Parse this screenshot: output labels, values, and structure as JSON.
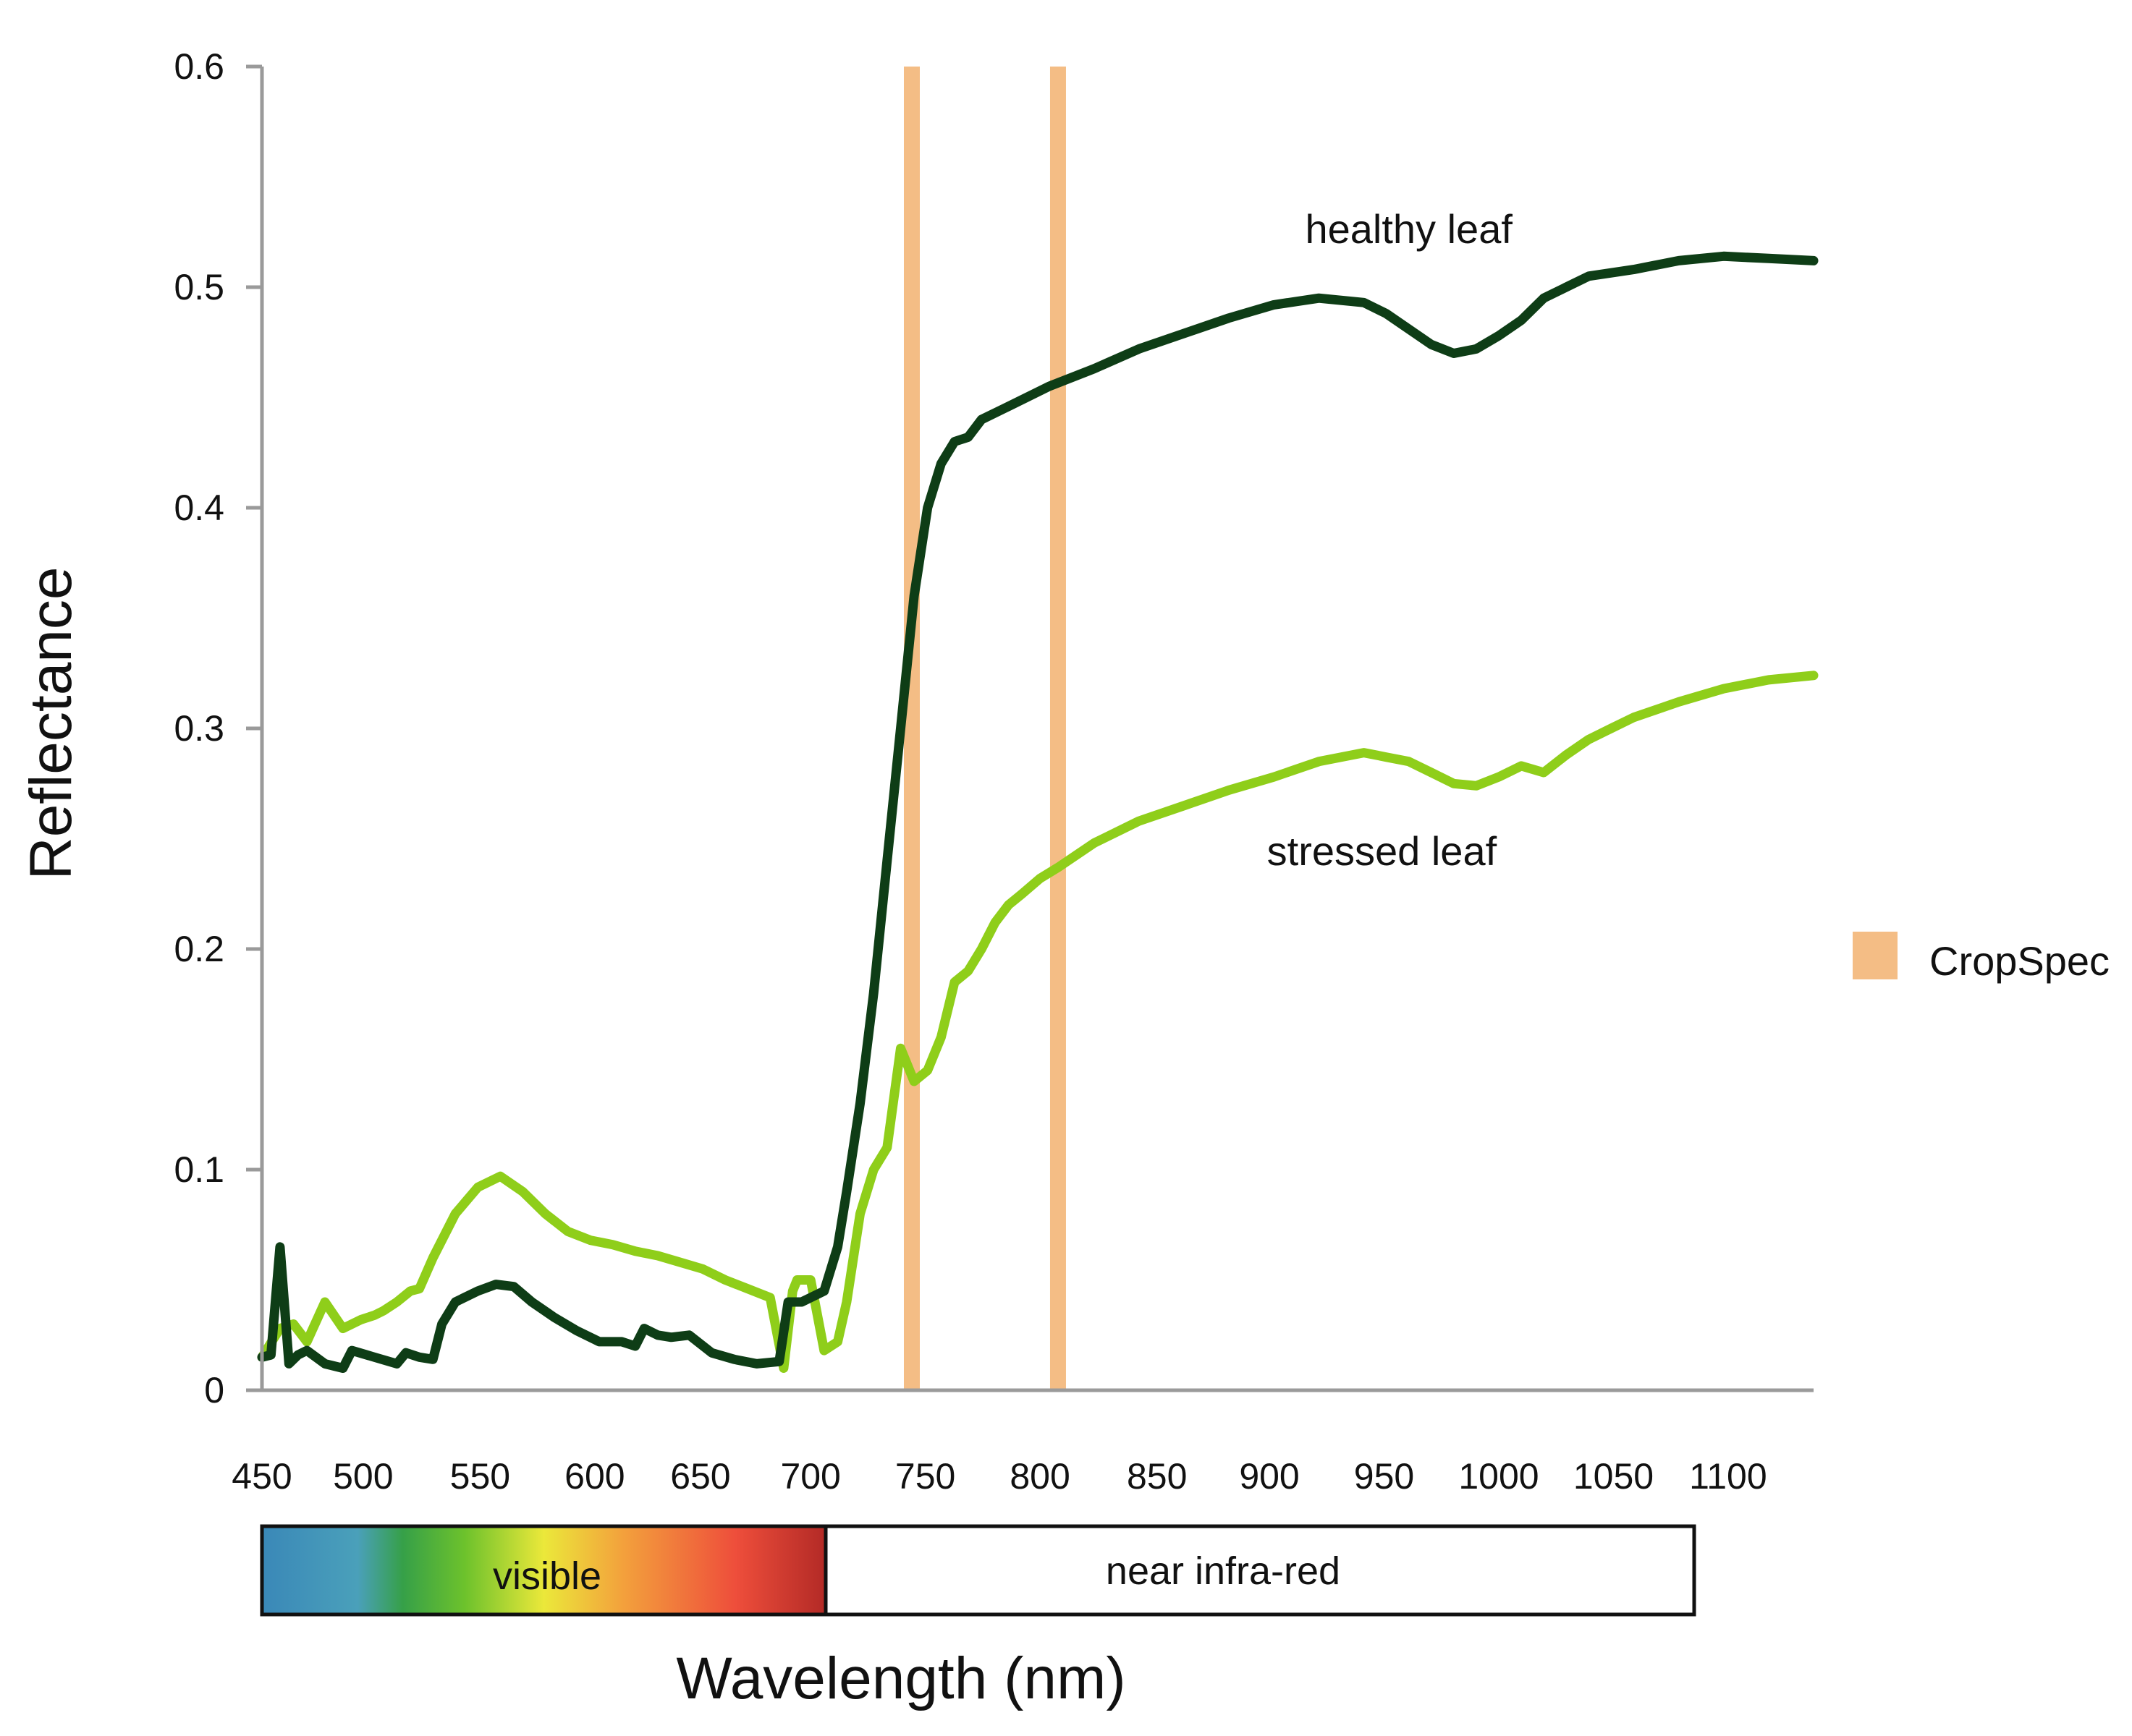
{
  "chart_data": {
    "type": "line",
    "title": "",
    "xlabel": "Wavelength (nm)",
    "ylabel": "Reflectance",
    "xlim": [
      450,
      1140
    ],
    "ylim": [
      0,
      0.6
    ],
    "grid": false,
    "x_tick_labels": [
      "450",
      "500",
      "550",
      "600",
      "650",
      "700",
      "750",
      "800",
      "850",
      "900",
      "950",
      "1000",
      "1050",
      "1100"
    ],
    "x_tick_values": [
      450,
      495,
      547,
      598,
      645,
      694,
      745,
      796,
      848,
      898,
      949,
      1000,
      1051,
      1102
    ],
    "y_tick_labels": [
      "0",
      "0.1",
      "0.2",
      "0.3",
      "0.4",
      "0.5",
      "0.6"
    ],
    "y_tick_values": [
      0,
      0.1,
      0.2,
      0.3,
      0.4,
      0.5,
      0.6
    ],
    "series": [
      {
        "name": "healthy leaf",
        "color": "#0e3d16",
        "label_at": [
          960,
          0.52
        ],
        "x": [
          450,
          454,
          458,
          462,
          466,
          470,
          478,
          486,
          490,
          500,
          510,
          514,
          520,
          526,
          530,
          536,
          546,
          554,
          562,
          570,
          580,
          590,
          600,
          610,
          616,
          620,
          626,
          632,
          640,
          650,
          660,
          670,
          680,
          684,
          690,
          700,
          706,
          710,
          716,
          722,
          728,
          734,
          740,
          746,
          752,
          758,
          764,
          770,
          780,
          800,
          820,
          840,
          860,
          880,
          900,
          920,
          940,
          950,
          970,
          980,
          990,
          1000,
          1010,
          1020,
          1040,
          1060,
          1080,
          1100,
          1120,
          1140
        ],
        "values": [
          0.015,
          0.016,
          0.065,
          0.012,
          0.016,
          0.018,
          0.012,
          0.01,
          0.018,
          0.015,
          0.012,
          0.017,
          0.015,
          0.014,
          0.03,
          0.04,
          0.045,
          0.048,
          0.047,
          0.04,
          0.033,
          0.027,
          0.022,
          0.022,
          0.02,
          0.028,
          0.025,
          0.024,
          0.025,
          0.017,
          0.014,
          0.012,
          0.013,
          0.04,
          0.04,
          0.045,
          0.065,
          0.09,
          0.13,
          0.18,
          0.24,
          0.3,
          0.36,
          0.4,
          0.42,
          0.43,
          0.432,
          0.44,
          0.445,
          0.455,
          0.463,
          0.472,
          0.479,
          0.486,
          0.492,
          0.495,
          0.493,
          0.488,
          0.474,
          0.47,
          0.472,
          0.478,
          0.485,
          0.495,
          0.505,
          0.508,
          0.512,
          0.514,
          0.513,
          0.512
        ]
      },
      {
        "name": "stressed leaf",
        "color": "#8fce1a",
        "label_at": [
          948,
          0.238
        ],
        "x": [
          450,
          458,
          464,
          470,
          478,
          486,
          494,
          500,
          504,
          510,
          516,
          520,
          526,
          536,
          546,
          556,
          566,
          576,
          586,
          596,
          606,
          616,
          626,
          636,
          646,
          656,
          666,
          676,
          682,
          686,
          688,
          694,
          700,
          706,
          710,
          716,
          722,
          728,
          734,
          740,
          746,
          752,
          758,
          764,
          770,
          776,
          782,
          788,
          796,
          804,
          820,
          840,
          860,
          880,
          900,
          920,
          940,
          950,
          960,
          970,
          980,
          990,
          1000,
          1010,
          1020,
          1030,
          1040,
          1050,
          1060,
          1080,
          1100,
          1120,
          1140
        ],
        "values": [
          0.015,
          0.028,
          0.03,
          0.022,
          0.04,
          0.028,
          0.032,
          0.034,
          0.036,
          0.04,
          0.045,
          0.046,
          0.06,
          0.08,
          0.092,
          0.097,
          0.09,
          0.08,
          0.072,
          0.068,
          0.066,
          0.063,
          0.061,
          0.058,
          0.055,
          0.05,
          0.046,
          0.042,
          0.01,
          0.045,
          0.05,
          0.05,
          0.018,
          0.022,
          0.04,
          0.08,
          0.1,
          0.11,
          0.155,
          0.14,
          0.145,
          0.16,
          0.185,
          0.19,
          0.2,
          0.212,
          0.22,
          0.225,
          0.232,
          0.237,
          0.248,
          0.258,
          0.265,
          0.272,
          0.278,
          0.285,
          0.289,
          0.287,
          0.285,
          0.28,
          0.275,
          0.274,
          0.278,
          0.283,
          0.28,
          0.288,
          0.295,
          0.3,
          0.305,
          0.312,
          0.318,
          0.322,
          0.324
        ]
      }
    ],
    "bands": [
      {
        "name": "CropSpec",
        "color": "#f4bd85",
        "x_values": [
          739,
          804
        ]
      }
    ],
    "legend": {
      "position": "right",
      "entries": [
        "CropSpec"
      ]
    },
    "spectrum": {
      "visible_label": "visible",
      "nir_label": "near infra-red",
      "range": [
        450,
        1090
      ],
      "visible_end": 700
    }
  }
}
